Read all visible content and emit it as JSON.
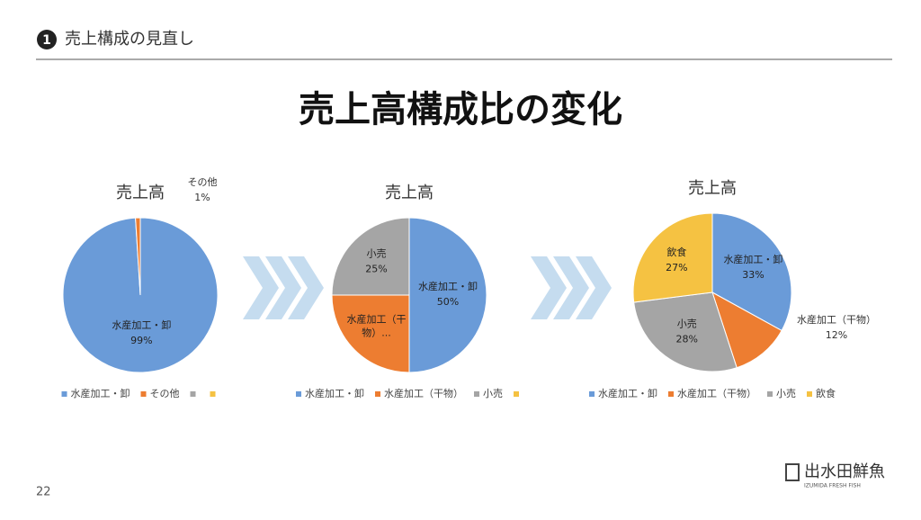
{
  "header": {
    "number": "1",
    "text": "売上構成の見直し"
  },
  "title": "売上高構成比の変化",
  "page_number": "22",
  "logo": {
    "name": "出水田鮮魚",
    "sub": "IZUMIDA FRESH FISH"
  },
  "chart_data": [
    {
      "type": "pie",
      "title": "売上高",
      "categories": [
        "水産加工・卸",
        "その他",
        null,
        null
      ],
      "values": [
        99,
        1,
        0,
        0
      ],
      "value_labels": [
        "99%",
        "1%",
        null,
        null
      ],
      "label_names": [
        "水産加工・卸",
        "その他",
        null,
        null
      ],
      "colors": [
        "#6a9bd8",
        "#ed7d31",
        "#a5a5a5",
        "#f5c242"
      ]
    },
    {
      "type": "pie",
      "title": "売上高",
      "categories": [
        "水産加工・卸",
        "水産加工（干物）",
        "小売",
        null
      ],
      "values": [
        50,
        25,
        25,
        0
      ],
      "value_labels": [
        "50%",
        null,
        "25%",
        null
      ],
      "label_names": [
        "水産加工・卸",
        "水産加工（干物）...",
        "小売",
        null
      ],
      "colors": [
        "#6a9bd8",
        "#ed7d31",
        "#a5a5a5",
        "#f5c242"
      ]
    },
    {
      "type": "pie",
      "title": "売上高",
      "categories": [
        "水産加工・卸",
        "水産加工（干物）",
        "小売",
        "飲食"
      ],
      "values": [
        33,
        12,
        28,
        27
      ],
      "value_labels": [
        "33%",
        "12%",
        "28%",
        "27%"
      ],
      "label_names": [
        "水産加工・卸",
        "水産加工（干物）",
        "小売",
        "飲食"
      ],
      "colors": [
        "#6a9bd8",
        "#ed7d31",
        "#a5a5a5",
        "#f5c242"
      ]
    }
  ]
}
